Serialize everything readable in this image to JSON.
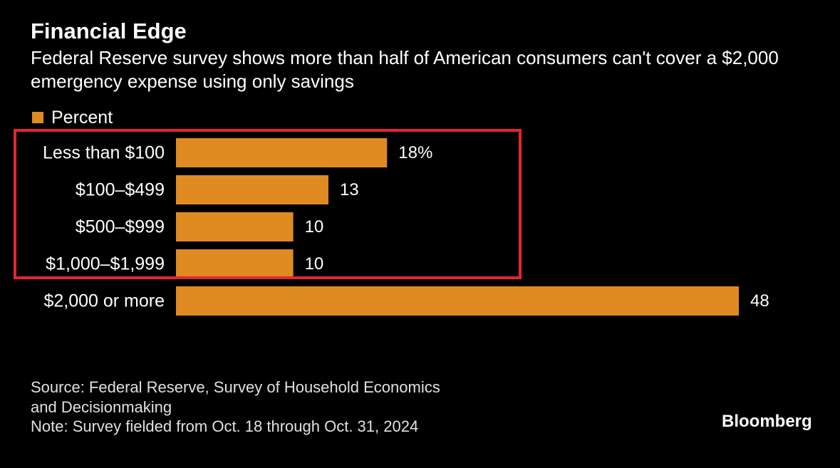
{
  "header": {
    "title": "Financial Edge",
    "subtitle": "Federal Reserve survey shows more than half of American consumers can't cover a $2,000 emergency expense using only savings"
  },
  "legend": {
    "label": "Percent"
  },
  "footer": {
    "source_line1": "Source: Federal Reserve, Survey of Household Economics",
    "source_line2": "and Decisionmaking",
    "note": "Note: Survey fielded from Oct. 18 through Oct. 31, 2024"
  },
  "brand": {
    "name": "Bloomberg"
  },
  "colors": {
    "background": "#000000",
    "bar": "#e08a22",
    "highlight": "#e3262f",
    "text": "#ffffff"
  },
  "chart_data": {
    "type": "bar",
    "orientation": "horizontal",
    "title": "Financial Edge",
    "subtitle": "Federal Reserve survey shows more than half of American consumers can't cover a $2,000 emergency expense using only savings",
    "categories": [
      "Less than $100",
      "$100–$499",
      "$500–$999",
      "$1,000–$1,999",
      "$2,000 or more"
    ],
    "series": [
      {
        "name": "Percent",
        "values": [
          18,
          13,
          10,
          10,
          48
        ],
        "value_labels": [
          "18%",
          "13",
          "10",
          "10",
          "48"
        ]
      }
    ],
    "xlim": [
      0,
      48
    ],
    "grid": false,
    "legend_position": "top-left",
    "highlighted_categories": [
      "Less than $100",
      "$100–$499",
      "$500–$999",
      "$1,000–$1,999"
    ]
  }
}
